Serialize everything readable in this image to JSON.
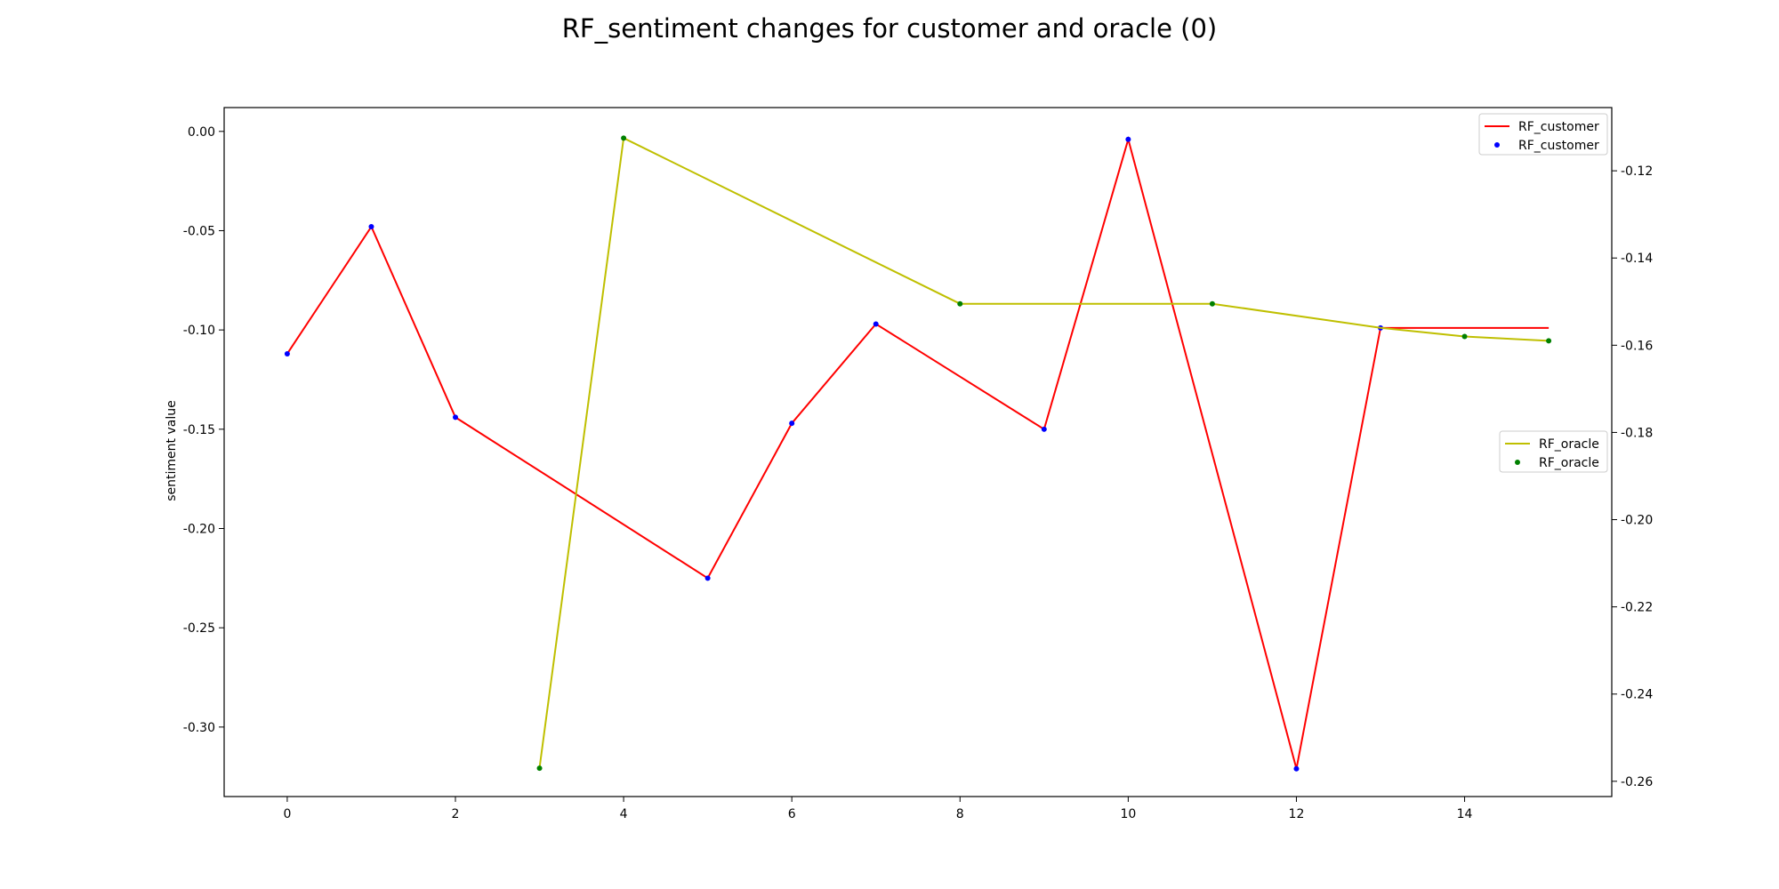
{
  "chart_data": {
    "type": "line",
    "title": "RF_sentiment changes for customer and oracle (0)",
    "ylabel": "sentiment value",
    "xlabel": "",
    "xlim": [
      -0.75,
      15.75
    ],
    "ylim_left": [
      -0.335,
      0.012
    ],
    "ylim_right": [
      -0.2635,
      -0.1055
    ],
    "x_ticks": [
      "0",
      "2",
      "4",
      "6",
      "8",
      "10",
      "12",
      "14"
    ],
    "y_left_ticks": [
      "0.00",
      "-0.05",
      "-0.10",
      "-0.15",
      "-0.20",
      "-0.25",
      "-0.30"
    ],
    "y_right_ticks": [
      "-0.12",
      "-0.14",
      "-0.16",
      "-0.18",
      "-0.20",
      "-0.22",
      "-0.24",
      "-0.26"
    ],
    "grid": false,
    "series": [
      {
        "name": "RF_customer",
        "axis": "left",
        "line_color": "#ff0000",
        "marker_color": "#0000ff",
        "marker_label": "RF_customer",
        "legend_placement": "top-right",
        "x": [
          0,
          1,
          2,
          5,
          6,
          7,
          9,
          10,
          12,
          13,
          15
        ],
        "y": [
          -0.112,
          -0.048,
          -0.144,
          -0.225,
          -0.147,
          -0.097,
          -0.15,
          -0.004,
          -0.321,
          -0.099,
          -0.099
        ],
        "markers": [
          true,
          true,
          true,
          true,
          true,
          true,
          true,
          true,
          true,
          true,
          false
        ]
      },
      {
        "name": "RF_oracle",
        "axis": "right",
        "line_color": "#bfbf00",
        "marker_color": "#008000",
        "marker_label": "RF_oracle",
        "legend_placement": "center-right",
        "x": [
          3,
          4,
          8,
          11,
          13,
          14,
          15
        ],
        "y": [
          -0.257,
          -0.1125,
          -0.1505,
          -0.1505,
          -0.156,
          -0.158,
          -0.159
        ],
        "markers": [
          true,
          true,
          true,
          true,
          false,
          true,
          true
        ]
      }
    ]
  }
}
